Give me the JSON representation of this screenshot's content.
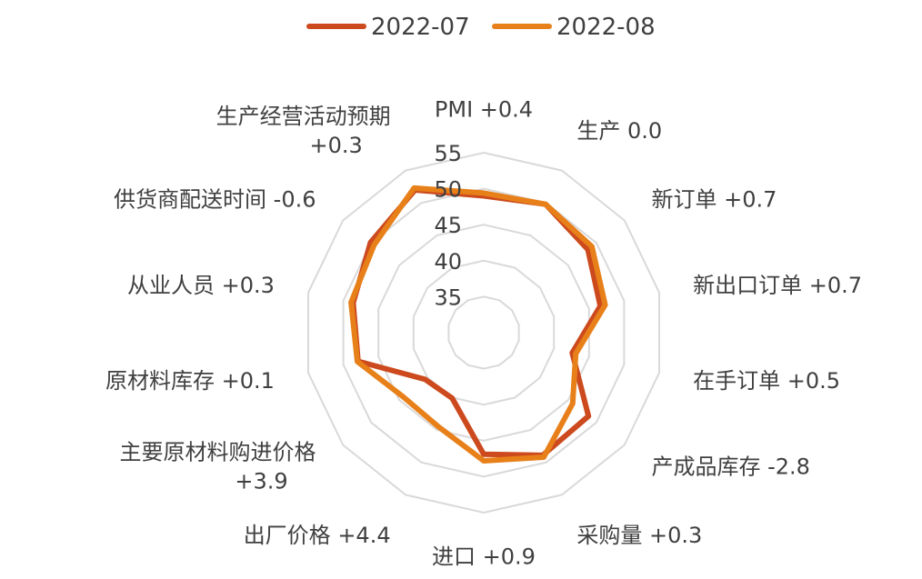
{
  "chart_data": {
    "type": "radar",
    "title": "",
    "legend": {
      "position": "top"
    },
    "categories": [
      "PMI +0.4",
      "生产 0.0",
      "新订单 +0.7",
      "新出口订单 +0.7",
      "在手订单 +0.5",
      "产成品库存 -2.8",
      "采购量 +0.3",
      "进口 +0.9",
      "出厂价格 +4.4",
      "主要原材料购进价格 +3.9",
      "原材料库存 +0.1",
      "从业人员 +0.3",
      "供货商配送时间 -0.6",
      "生产经营活动预期 +0.3"
    ],
    "category_lines": [
      [
        "PMI +0.4"
      ],
      [
        "生产 0.0"
      ],
      [
        "新订单 +0.7"
      ],
      [
        "新出口订单 +0.7"
      ],
      [
        "在手订单 +0.5"
      ],
      [
        "产成品库存 -2.8"
      ],
      [
        "采购量 +0.3"
      ],
      [
        "进口 +0.9"
      ],
      [
        "出厂价格 +4.4"
      ],
      [
        "主要原材料购进价格",
        "+3.9"
      ],
      [
        "原材料库存 +0.1"
      ],
      [
        "从业人员 +0.3"
      ],
      [
        "供货商配送时间 -0.6"
      ],
      [
        "生产经营活动预期",
        "+0.3"
      ]
    ],
    "radial_axis": {
      "min": 30,
      "max": 55,
      "ticks": [
        35,
        40,
        45,
        50,
        55
      ],
      "grid": true
    },
    "series": [
      {
        "name": "2022-07",
        "color": "#cc4a1d",
        "values": [
          49.0,
          49.8,
          48.5,
          46.6,
          42.6,
          48.6,
          48.9,
          46.9,
          40.1,
          40.4,
          47.9,
          48.6,
          50.1,
          52.0
        ]
      },
      {
        "name": "2022-08",
        "color": "#e8801a",
        "values": [
          49.4,
          49.8,
          49.2,
          47.3,
          43.1,
          45.8,
          49.2,
          47.8,
          44.5,
          44.3,
          48.0,
          48.9,
          49.5,
          52.3
        ]
      }
    ]
  }
}
